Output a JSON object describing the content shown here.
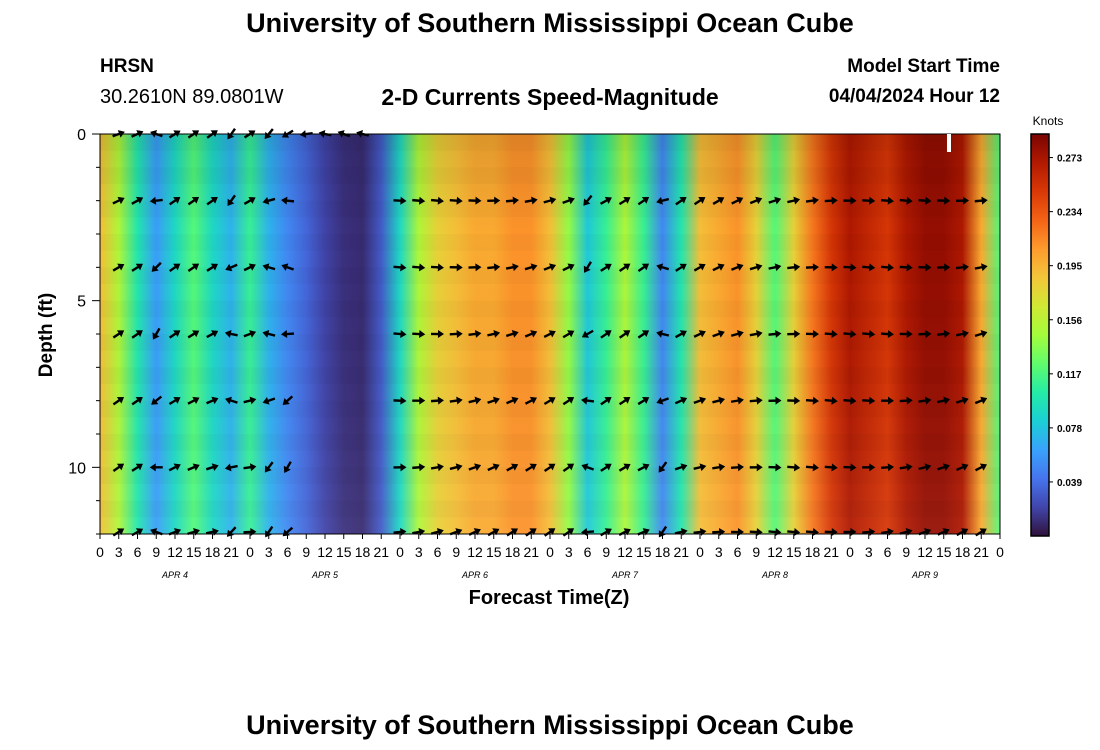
{
  "header": {
    "title": "University of Southern Mississippi Ocean Cube",
    "station": "HRSN",
    "coords": "30.2610N  89.0801W",
    "subtitle": "2-D Currents Speed-Magnitude",
    "model_start_label": "Model Start Time",
    "model_start_value": "04/04/2024 Hour 12"
  },
  "footer": {
    "title": "University of Southern Mississippi Ocean Cube"
  },
  "chart_data": {
    "type": "heatmap",
    "title": "2-D Currents Speed-Magnitude",
    "xlabel": "Forecast Time(Z)",
    "ylabel": "Depth (ft)",
    "x_tick_labels": [
      "0",
      "3",
      "6",
      "9",
      "12",
      "15",
      "18",
      "21",
      "0",
      "3",
      "6",
      "9",
      "12",
      "15",
      "18",
      "21",
      "0",
      "3",
      "6",
      "9",
      "12",
      "15",
      "18",
      "21",
      "0",
      "3",
      "6",
      "9",
      "12",
      "15",
      "18",
      "21",
      "0",
      "3",
      "6",
      "9",
      "12",
      "15",
      "18",
      "21",
      "0",
      "3",
      "6",
      "9",
      "12",
      "15",
      "18",
      "21",
      "0"
    ],
    "day_labels": [
      "APR 4",
      "APR 5",
      "APR 6",
      "APR 7",
      "APR 8",
      "APR 9"
    ],
    "y_ticks": [
      0,
      5,
      10
    ],
    "ylim": [
      0,
      12
    ],
    "xlim_hours": [
      0,
      144
    ],
    "colorbar": {
      "label": "Knots",
      "ticks": [
        0.039,
        0.078,
        0.117,
        0.156,
        0.195,
        0.234,
        0.273
      ],
      "range": [
        0.0,
        0.29
      ],
      "colormap": [
        "#30123b",
        "#4145ab",
        "#4675ed",
        "#39a2fc",
        "#1bcfd4",
        "#24eca6",
        "#61fc6c",
        "#a4fc3b",
        "#d1e834",
        "#f3c63a",
        "#fe9b2d",
        "#f36315",
        "#d93806",
        "#b11901",
        "#7a0403"
      ]
    },
    "speed_profile_knots": [
      [
        0,
        0.19
      ],
      [
        3,
        0.15
      ],
      [
        6,
        0.1
      ],
      [
        9,
        0.06
      ],
      [
        12,
        0.09
      ],
      [
        15,
        0.12
      ],
      [
        18,
        0.09
      ],
      [
        21,
        0.07
      ],
      [
        24,
        0.11
      ],
      [
        27,
        0.07
      ],
      [
        30,
        0.05
      ],
      [
        33,
        0.035
      ],
      [
        36,
        0.02
      ],
      [
        39,
        0.012
      ],
      [
        42,
        0.01
      ],
      [
        45,
        0.03
      ],
      [
        48,
        0.09
      ],
      [
        51,
        0.15
      ],
      [
        54,
        0.18
      ],
      [
        57,
        0.19
      ],
      [
        60,
        0.2
      ],
      [
        63,
        0.2
      ],
      [
        66,
        0.21
      ],
      [
        69,
        0.21
      ],
      [
        72,
        0.19
      ],
      [
        75,
        0.14
      ],
      [
        78,
        0.08
      ],
      [
        81,
        0.11
      ],
      [
        84,
        0.15
      ],
      [
        87,
        0.11
      ],
      [
        90,
        0.05
      ],
      [
        93,
        0.1
      ],
      [
        96,
        0.19
      ],
      [
        99,
        0.2
      ],
      [
        102,
        0.21
      ],
      [
        105,
        0.18
      ],
      [
        108,
        0.12
      ],
      [
        111,
        0.18
      ],
      [
        114,
        0.22
      ],
      [
        117,
        0.25
      ],
      [
        120,
        0.27
      ],
      [
        123,
        0.26
      ],
      [
        126,
        0.25
      ],
      [
        129,
        0.27
      ],
      [
        132,
        0.28
      ],
      [
        135,
        0.28
      ],
      [
        138,
        0.27
      ],
      [
        141,
        0.2
      ],
      [
        144,
        0.12
      ]
    ],
    "vector_depths_ft": [
      0,
      2,
      4,
      6,
      8,
      10,
      12
    ]
  }
}
